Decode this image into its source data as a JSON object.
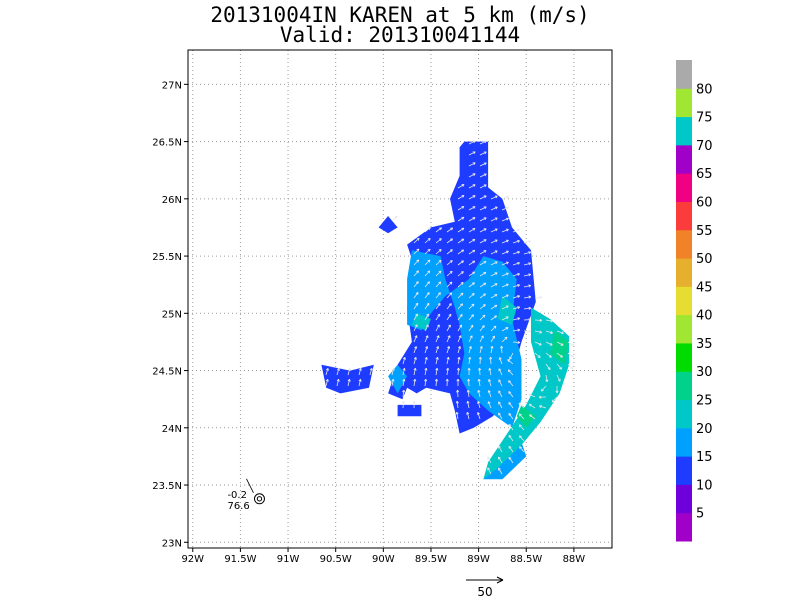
{
  "chart_data": {
    "type": "heatmap",
    "title": "20131004IN KAREN at 5 km (m/s)",
    "subtitle": "Valid: 201310041144",
    "xlabel": "",
    "ylabel": "",
    "xlim": [
      -92.05,
      -87.6
    ],
    "ylim": [
      22.95,
      27.3
    ],
    "x_ticks": [
      {
        "v": -92.0,
        "label": "92W"
      },
      {
        "v": -91.5,
        "label": "91.5W"
      },
      {
        "v": -91.0,
        "label": "91W"
      },
      {
        "v": -90.5,
        "label": "90.5W"
      },
      {
        "v": -90.0,
        "label": "90W"
      },
      {
        "v": -89.5,
        "label": "89.5W"
      },
      {
        "v": -89.0,
        "label": "89W"
      },
      {
        "v": -88.5,
        "label": "88.5W"
      },
      {
        "v": -88.0,
        "label": "88W"
      }
    ],
    "y_ticks": [
      {
        "v": 23.0,
        "label": "23N"
      },
      {
        "v": 23.5,
        "label": "23.5N"
      },
      {
        "v": 24.0,
        "label": "24N"
      },
      {
        "v": 24.5,
        "label": "24.5N"
      },
      {
        "v": 25.0,
        "label": "25N"
      },
      {
        "v": 25.5,
        "label": "25.5N"
      },
      {
        "v": 26.0,
        "label": "26N"
      },
      {
        "v": 26.5,
        "label": "26.5N"
      },
      {
        "v": 27.0,
        "label": "27N"
      }
    ],
    "grid": true,
    "colorbar": {
      "labels": [
        "5",
        "10",
        "15",
        "20",
        "25",
        "30",
        "35",
        "40",
        "45",
        "50",
        "55",
        "60",
        "65",
        "70",
        "75",
        "80"
      ],
      "colors": [
        "#a000c8",
        "#6e00dc",
        "#1e3cff",
        "#00a0ff",
        "#00c8c8",
        "#00d28c",
        "#00dc00",
        "#a0e632",
        "#e6dc32",
        "#e6af2d",
        "#f08228",
        "#fa3c3c",
        "#f00082",
        "#a000c8",
        "#00c8c8",
        "#a0e632",
        "#aaaaaa"
      ]
    },
    "regions": [
      {
        "level": "10",
        "polygon": [
          [
            -89.15,
            26.5
          ],
          [
            -88.9,
            26.5
          ],
          [
            -88.9,
            26.1
          ],
          [
            -88.75,
            26.0
          ],
          [
            -88.65,
            25.75
          ],
          [
            -88.45,
            25.55
          ],
          [
            -88.4,
            25.1
          ],
          [
            -88.55,
            24.75
          ],
          [
            -88.65,
            24.45
          ],
          [
            -88.75,
            24.2
          ],
          [
            -88.85,
            24.1
          ],
          [
            -89.05,
            24.0
          ],
          [
            -89.2,
            23.95
          ],
          [
            -89.25,
            24.15
          ],
          [
            -89.3,
            24.3
          ],
          [
            -89.55,
            24.35
          ],
          [
            -89.65,
            24.3
          ],
          [
            -89.75,
            24.35
          ],
          [
            -89.8,
            24.25
          ],
          [
            -89.95,
            24.3
          ],
          [
            -89.85,
            24.55
          ],
          [
            -89.7,
            24.75
          ],
          [
            -89.75,
            25.05
          ],
          [
            -89.65,
            25.35
          ],
          [
            -89.75,
            25.6
          ],
          [
            -89.5,
            25.75
          ],
          [
            -89.25,
            25.8
          ],
          [
            -89.3,
            26.0
          ],
          [
            -89.2,
            26.2
          ],
          [
            -89.2,
            26.45
          ]
        ]
      },
      {
        "level": "10",
        "polygon": [
          [
            -89.95,
            25.85
          ],
          [
            -89.85,
            25.75
          ],
          [
            -89.95,
            25.7
          ],
          [
            -90.05,
            25.75
          ]
        ]
      },
      {
        "level": "10",
        "polygon": [
          [
            -90.65,
            24.55
          ],
          [
            -90.35,
            24.5
          ],
          [
            -90.1,
            24.55
          ],
          [
            -90.15,
            24.35
          ],
          [
            -90.45,
            24.3
          ],
          [
            -90.6,
            24.35
          ]
        ]
      },
      {
        "level": "10",
        "polygon": [
          [
            -89.85,
            24.2
          ],
          [
            -89.6,
            24.2
          ],
          [
            -89.6,
            24.1
          ],
          [
            -89.85,
            24.1
          ]
        ]
      },
      {
        "level": "15",
        "polygon": [
          [
            -89.7,
            25.55
          ],
          [
            -89.4,
            25.5
          ],
          [
            -89.35,
            25.3
          ],
          [
            -89.25,
            25.05
          ],
          [
            -89.2,
            24.9
          ],
          [
            -89.15,
            24.65
          ],
          [
            -89.2,
            24.45
          ],
          [
            -89.1,
            24.3
          ],
          [
            -88.9,
            24.15
          ],
          [
            -88.65,
            24.0
          ],
          [
            -88.55,
            24.25
          ],
          [
            -88.55,
            24.6
          ],
          [
            -88.65,
            24.95
          ],
          [
            -88.6,
            25.3
          ],
          [
            -88.75,
            25.45
          ],
          [
            -88.95,
            25.5
          ],
          [
            -89.1,
            25.3
          ],
          [
            -89.35,
            25.15
          ],
          [
            -89.5,
            25.0
          ],
          [
            -89.6,
            24.85
          ],
          [
            -89.75,
            24.9
          ],
          [
            -89.75,
            25.3
          ]
        ]
      },
      {
        "level": "15",
        "polygon": [
          [
            -89.85,
            24.55
          ],
          [
            -89.75,
            24.45
          ],
          [
            -89.85,
            24.3
          ],
          [
            -89.95,
            24.45
          ]
        ]
      },
      {
        "level": "15",
        "polygon": [
          [
            -88.9,
            23.65
          ],
          [
            -88.75,
            23.8
          ],
          [
            -88.6,
            24.0
          ],
          [
            -88.5,
            23.75
          ],
          [
            -88.75,
            23.55
          ],
          [
            -88.95,
            23.55
          ]
        ]
      },
      {
        "level": "20",
        "polygon": [
          [
            -88.45,
            25.05
          ],
          [
            -88.25,
            24.95
          ],
          [
            -88.05,
            24.8
          ],
          [
            -88.05,
            24.55
          ],
          [
            -88.15,
            24.3
          ],
          [
            -88.35,
            24.05
          ],
          [
            -88.55,
            23.85
          ],
          [
            -88.8,
            23.65
          ],
          [
            -88.95,
            23.55
          ],
          [
            -88.9,
            23.7
          ],
          [
            -88.7,
            23.95
          ],
          [
            -88.5,
            24.2
          ],
          [
            -88.35,
            24.45
          ],
          [
            -88.45,
            24.75
          ]
        ]
      },
      {
        "level": "20",
        "polygon": [
          [
            -88.75,
            25.15
          ],
          [
            -88.6,
            25.05
          ],
          [
            -88.65,
            24.9
          ],
          [
            -88.8,
            24.95
          ]
        ]
      },
      {
        "level": "20",
        "polygon": [
          [
            -89.65,
            25.0
          ],
          [
            -89.5,
            24.95
          ],
          [
            -89.55,
            24.85
          ],
          [
            -89.7,
            24.9
          ]
        ]
      },
      {
        "level": "25",
        "polygon": [
          [
            -88.2,
            24.85
          ],
          [
            -88.05,
            24.75
          ],
          [
            -88.1,
            24.55
          ],
          [
            -88.25,
            24.65
          ]
        ]
      },
      {
        "level": "25",
        "polygon": [
          [
            -88.55,
            24.2
          ],
          [
            -88.4,
            24.1
          ],
          [
            -88.5,
            24.0
          ],
          [
            -88.6,
            24.1
          ]
        ]
      }
    ],
    "wind_arrow_scale": "50",
    "center_annotation": {
      "lon": -91.3,
      "lat": 23.38,
      "upper": "-0.2",
      "lower": "76.6"
    }
  }
}
